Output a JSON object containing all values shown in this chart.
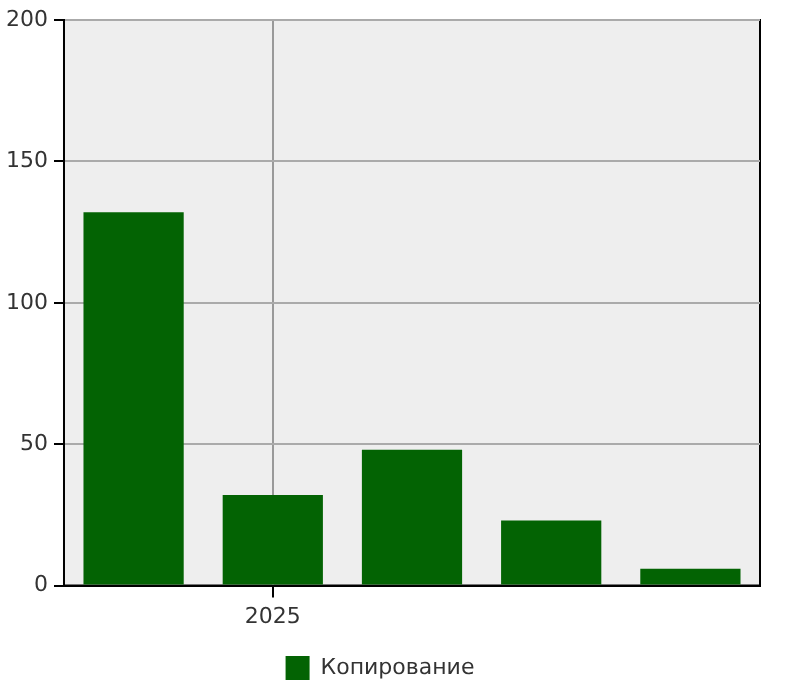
{
  "chart_data": {
    "type": "bar",
    "categories": [
      null,
      "2025",
      null,
      null,
      null
    ],
    "series": [
      {
        "name": "Копирование",
        "color": "#036303",
        "values": [
          132,
          32,
          48,
          23,
          6
        ]
      }
    ],
    "ylim": [
      0,
      200
    ],
    "yticks": [
      0,
      50,
      100,
      150,
      200
    ],
    "grid": true,
    "legend": "bottom"
  }
}
